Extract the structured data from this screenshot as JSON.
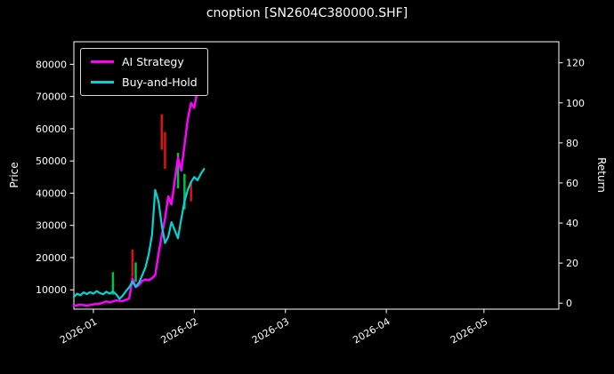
{
  "colors": {
    "background": "#000000",
    "text": "#ffffff",
    "spine": "#ffffff",
    "ai_strategy": "#ff00ff",
    "buy_and_hold": "#00d5d5",
    "candle_up": "#00c24a",
    "candle_down": "#dd1111"
  },
  "chart_data": {
    "type": "line",
    "title": "cnoption [SN2604C380000.SHF]",
    "xlabel": "",
    "ylabel_left": "Price",
    "ylabel_right": "Return",
    "legend_position": "upper-left",
    "grid": false,
    "x_domain": [
      "2025-12-26",
      "2026-05-24"
    ],
    "x_tick_dates": [
      "2026-01-01",
      "2026-02-01",
      "2026-03-01",
      "2026-04-01",
      "2026-05-01"
    ],
    "x_tick_labels": [
      "2026-01",
      "2026-02",
      "2026-03",
      "2026-04",
      "2026-05"
    ],
    "y_left_ticks": [
      10000,
      20000,
      30000,
      40000,
      50000,
      60000,
      70000,
      80000
    ],
    "y_left_domain": [
      4000,
      87000
    ],
    "y_right_ticks": [
      0,
      20,
      40,
      60,
      80,
      100,
      120
    ],
    "y_right_domain": [
      -3,
      130.5
    ],
    "series": [
      {
        "name": "AI Strategy",
        "axis": "left",
        "color": "#ff00ff",
        "points": [
          [
            "2025-12-26",
            5000
          ],
          [
            "2025-12-28",
            5400
          ],
          [
            "2025-12-30",
            5100
          ],
          [
            "2026-01-01",
            5500
          ],
          [
            "2026-01-03",
            5700
          ],
          [
            "2026-01-05",
            6400
          ],
          [
            "2026-01-06",
            6100
          ],
          [
            "2026-01-08",
            6700
          ],
          [
            "2026-01-10",
            6500
          ],
          [
            "2026-01-12",
            7300
          ],
          [
            "2026-01-13",
            13500
          ],
          [
            "2026-01-14",
            10800
          ],
          [
            "2026-01-15",
            11500
          ],
          [
            "2026-01-16",
            12800
          ],
          [
            "2026-01-17",
            13200
          ],
          [
            "2026-01-18",
            13000
          ],
          [
            "2026-01-19",
            13600
          ],
          [
            "2026-01-20",
            14500
          ],
          [
            "2026-01-21",
            21000
          ],
          [
            "2026-01-22",
            27000
          ],
          [
            "2026-01-23",
            32000
          ],
          [
            "2026-01-24",
            39000
          ],
          [
            "2026-01-25",
            36500
          ],
          [
            "2026-01-26",
            44000
          ],
          [
            "2026-01-27",
            51000
          ],
          [
            "2026-01-28",
            47000
          ],
          [
            "2026-01-29",
            55000
          ],
          [
            "2026-01-30",
            63000
          ],
          [
            "2026-01-31",
            68000
          ],
          [
            "2026-02-01",
            66500
          ],
          [
            "2026-02-02",
            72000
          ],
          [
            "2026-02-03",
            78000
          ]
        ]
      },
      {
        "name": "Buy-and-Hold",
        "axis": "left",
        "color": "#00d5d5",
        "points": [
          [
            "2025-12-26",
            7800
          ],
          [
            "2025-12-27",
            8800
          ],
          [
            "2025-12-28",
            8300
          ],
          [
            "2025-12-29",
            9200
          ],
          [
            "2025-12-30",
            8700
          ],
          [
            "2025-12-31",
            9300
          ],
          [
            "2026-01-01",
            8800
          ],
          [
            "2026-01-02",
            9600
          ],
          [
            "2026-01-03",
            9000
          ],
          [
            "2026-01-04",
            8600
          ],
          [
            "2026-01-05",
            9400
          ],
          [
            "2026-01-06",
            8800
          ],
          [
            "2026-01-07",
            9500
          ],
          [
            "2026-01-08",
            8600
          ],
          [
            "2026-01-09",
            7200
          ],
          [
            "2026-01-10",
            8200
          ],
          [
            "2026-01-11",
            9600
          ],
          [
            "2026-01-12",
            10800
          ],
          [
            "2026-01-13",
            12500
          ],
          [
            "2026-01-14",
            11000
          ],
          [
            "2026-01-15",
            12200
          ],
          [
            "2026-01-16",
            14500
          ],
          [
            "2026-01-17",
            17000
          ],
          [
            "2026-01-18",
            21000
          ],
          [
            "2026-01-19",
            27000
          ],
          [
            "2026-01-20",
            41000
          ],
          [
            "2026-01-21",
            37500
          ],
          [
            "2026-01-22",
            30000
          ],
          [
            "2026-01-23",
            24500
          ],
          [
            "2026-01-24",
            26500
          ],
          [
            "2026-01-25",
            31000
          ],
          [
            "2026-01-26",
            28500
          ],
          [
            "2026-01-27",
            26000
          ],
          [
            "2026-01-28",
            32000
          ],
          [
            "2026-01-29",
            37500
          ],
          [
            "2026-01-30",
            41000
          ],
          [
            "2026-01-31",
            43500
          ],
          [
            "2026-02-01",
            45000
          ],
          [
            "2026-02-02",
            44000
          ],
          [
            "2026-02-03",
            46000
          ],
          [
            "2026-02-04",
            47500
          ]
        ]
      }
    ],
    "candles": [
      {
        "date": "2026-01-07",
        "low": 8500,
        "high": 15500,
        "dir": "up"
      },
      {
        "date": "2026-01-13",
        "low": 14000,
        "high": 22500,
        "dir": "down"
      },
      {
        "date": "2026-01-14",
        "low": 12500,
        "high": 18500,
        "dir": "up"
      },
      {
        "date": "2026-01-22",
        "low": 53500,
        "high": 64500,
        "dir": "down"
      },
      {
        "date": "2026-01-23",
        "low": 47500,
        "high": 59000,
        "dir": "down"
      },
      {
        "date": "2026-01-27",
        "low": 41500,
        "high": 52500,
        "dir": "up"
      },
      {
        "date": "2026-01-29",
        "low": 35000,
        "high": 46000,
        "dir": "up"
      },
      {
        "date": "2026-01-31",
        "low": 37500,
        "high": 43500,
        "dir": "down"
      }
    ]
  }
}
